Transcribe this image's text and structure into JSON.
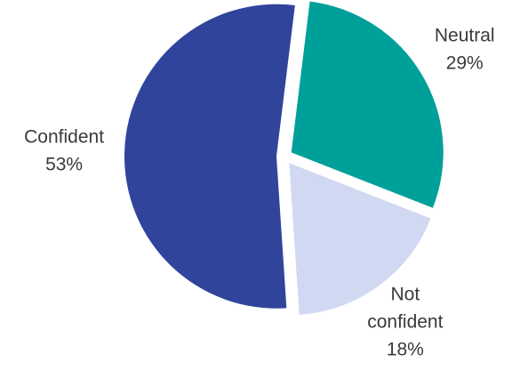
{
  "chart_data": {
    "type": "pie",
    "title": "",
    "slices": [
      {
        "label_lines": [
          "Neutral"
        ],
        "percent_label": "29%",
        "value": 29,
        "color": "#00a09a"
      },
      {
        "label_lines": [
          "Not",
          "confident"
        ],
        "percent_label": "18%",
        "value": 18,
        "color": "#d0d9f1"
      },
      {
        "label_lines": [
          "Confident"
        ],
        "percent_label": "53%",
        "value": 53,
        "color": "#31449b"
      }
    ],
    "exploded": true,
    "legend": "none"
  }
}
